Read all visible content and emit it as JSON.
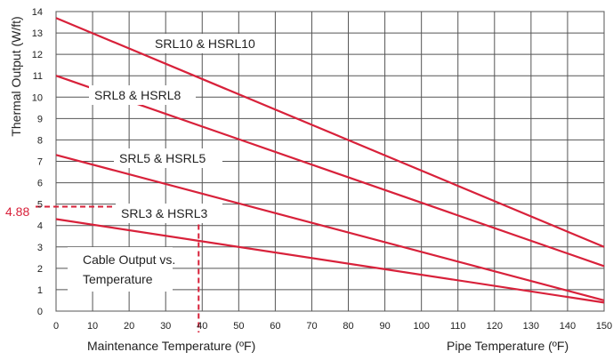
{
  "chart_data": {
    "type": "line",
    "title": "",
    "xlabel": "Pipe Temperature (ºF)",
    "ylabel": "Thermal Output (W/ft)",
    "xlim": [
      0,
      150
    ],
    "ylim": [
      0,
      14
    ],
    "x_ticks": [
      0,
      10,
      20,
      30,
      40,
      50,
      60,
      70,
      80,
      90,
      100,
      110,
      120,
      130,
      140,
      150
    ],
    "y_ticks": [
      0,
      1,
      2,
      3,
      4,
      5,
      6,
      7,
      8,
      9,
      10,
      11,
      12,
      13,
      14
    ],
    "grid": true,
    "line_color": "#d8213a",
    "series": [
      {
        "name": "SRL10 & HSRL10",
        "x": [
          0,
          150
        ],
        "y": [
          13.7,
          3.0
        ]
      },
      {
        "name": "SRL8 & HSRL8",
        "x": [
          0,
          150
        ],
        "y": [
          11.0,
          2.1
        ]
      },
      {
        "name": "SRL5 & HSRL5",
        "x": [
          0,
          150
        ],
        "y": [
          7.3,
          0.5
        ]
      },
      {
        "name": "SRL3 & HSRL3",
        "x": [
          0,
          150
        ],
        "y": [
          4.3,
          0.4
        ]
      }
    ],
    "annotations": {
      "box_text_line1": "Cable Output vs.",
      "box_text_line2": "Temperature",
      "maintenance_label": "Maintenance Temperature (ºF)",
      "maintenance_x": 40,
      "marker_value": "4.88",
      "marker_y": 4.88,
      "marker_color": "#d8213a"
    }
  }
}
